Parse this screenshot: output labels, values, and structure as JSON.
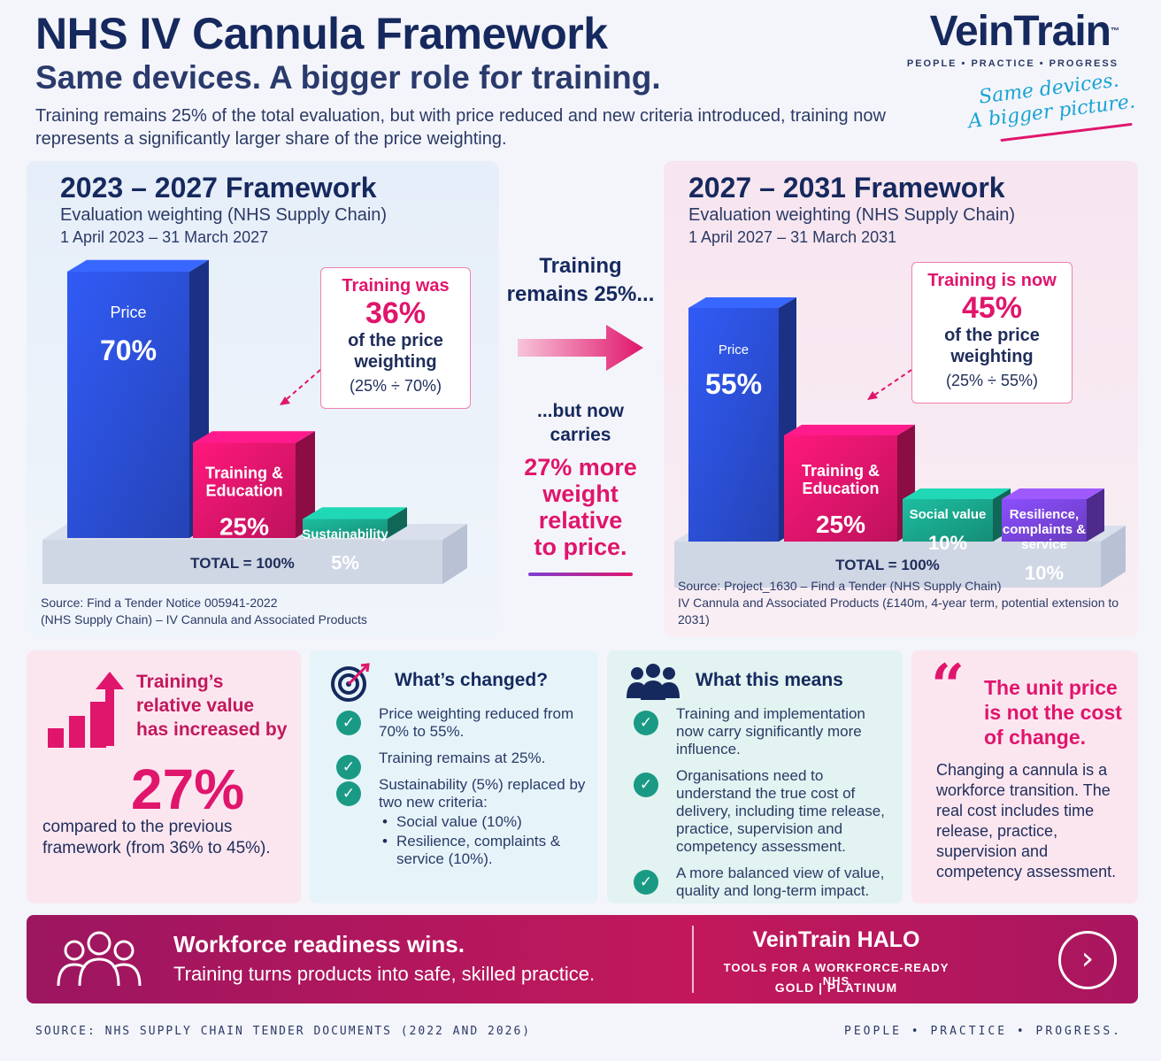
{
  "header": {
    "title": "NHS IV Cannula Framework",
    "subtitle": "Same devices. A bigger role for training.",
    "description": "Training remains 25% of the total evaluation, but with price reduced and new criteria introduced, training now represents a significantly larger share of the price weighting."
  },
  "logo": {
    "name": "VeinTrain",
    "tm": "™",
    "tagline": "PEOPLE • PRACTICE • PROGRESS",
    "script_line1": "Same devices.",
    "script_line2": "A bigger picture."
  },
  "left_panel": {
    "title": "2023 – 2027 Framework",
    "subtitle": "Evaluation weighting (NHS Supply Chain)",
    "dates": "1 April 2023 – 31 March 2027",
    "callout_a": "Training was",
    "callout_b": "36%",
    "callout_c1": "of the price",
    "callout_c2": "weighting",
    "callout_d": "(25% ÷ 70%)",
    "source_line1": "Source: Find a Tender Notice 005941-2022",
    "source_line2": "(NHS Supply Chain) – IV Cannula and Associated Products"
  },
  "right_panel": {
    "title": "2027 – 2031 Framework",
    "subtitle": "Evaluation weighting (NHS Supply Chain)",
    "dates": "1 April 2027 – 31 March 2031",
    "callout_a": "Training is now",
    "callout_b": "45%",
    "callout_c1": "of the price",
    "callout_c2": "weighting",
    "callout_d": "(25% ÷ 55%)",
    "source_line1": "Source: Project_1630 – Find a Tender (NHS Supply Chain)",
    "source_line2": "IV Cannula and Associated Products (£140m, 4-year term, potential extension to 2031)"
  },
  "middle": {
    "top_line1": "Training",
    "top_line2": "remains 25%...",
    "note_line1": "...but now",
    "note_line2": "carries",
    "hl_line1": "27% more",
    "hl_line2": "weight",
    "hl_line3": "relative",
    "hl_line4": "to price."
  },
  "chart_data": [
    {
      "type": "bar",
      "categories": [
        "Price",
        "Training & Education",
        "Sustainability"
      ],
      "values": [
        70,
        25,
        5
      ],
      "value_labels": [
        "70%",
        "25%",
        "5%"
      ],
      "total_label": "TOTAL = 100%",
      "colors": [
        "#2b4fd6",
        "#e0156c",
        "#19a68c"
      ]
    },
    {
      "type": "bar",
      "categories": [
        "Price",
        "Training & Education",
        "Social value",
        "Resilience, complaints & service"
      ],
      "values": [
        55,
        25,
        10,
        10
      ],
      "value_labels": [
        "55%",
        "25%",
        "10%",
        "10%"
      ],
      "total_label": "TOTAL = 100%",
      "colors": [
        "#2b4fd6",
        "#e0156c",
        "#19a68c",
        "#7a45e0"
      ]
    }
  ],
  "cards": {
    "increase": {
      "head_line1": "Training’s",
      "head_line2": "relative value",
      "head_line3": "has increased by",
      "big": "27%",
      "foot_line1": "compared to the previous",
      "foot_line2": "framework (from 36% to 45%)."
    },
    "changed": {
      "title": "What’s changed?",
      "item1": "Price weighting reduced from 70% to 55%.",
      "item2": "Training remains at 25%.",
      "item3": "Sustainability (5%) replaced by two new criteria:",
      "bullet1": "Social value (10%)",
      "bullet2": "Resilience, complaints & service (10%)."
    },
    "means": {
      "title": "What this means",
      "item1": "Training and implementation now carry significantly more influence.",
      "item2": "Organisations need to understand the true cost of delivery, including time release, practice, supervision and competency assessment.",
      "item3": "A more balanced view of value, quality and long-term impact."
    },
    "quote": {
      "mark": "“",
      "head": "The unit price is not the cost of change.",
      "body": "Changing a cannula is a workforce transition. The real cost includes time release, practice, supervision and competency assessment."
    }
  },
  "banner": {
    "title": "Workforce readiness wins.",
    "subtitle": "Training turns products into safe, skilled practice.",
    "brand": "VeinTrain HALO",
    "tagline": "TOOLS FOR A WORKFORCE-READY NHS",
    "tiers": "GOLD  |  PLATINUM",
    "button_icon": "chevron-right-icon",
    "button_glyph": "›"
  },
  "footer": {
    "source": "SOURCE: NHS SUPPLY CHAIN TENDER DOCUMENTS (2022 AND 2026)",
    "tagline": "PEOPLE  •  PRACTICE  •  PROGRESS."
  }
}
